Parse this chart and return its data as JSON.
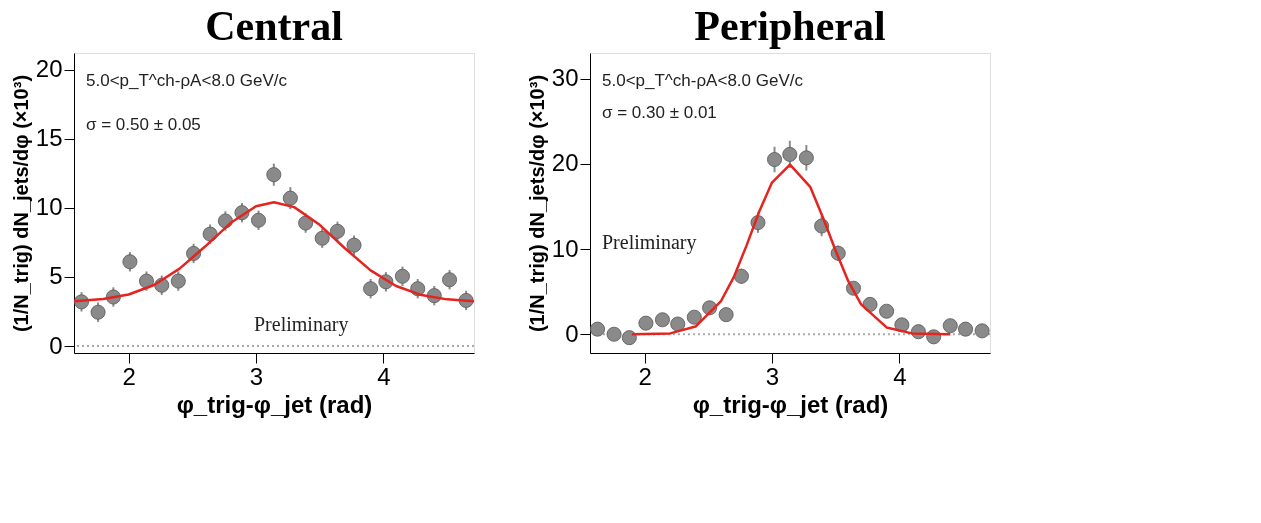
{
  "chart_data": [
    {
      "type": "scatter",
      "title": "Central",
      "xlabel": "φ_trig-φ_jet (rad)",
      "ylabel": "(1/N_trig) dN_jets/dφ (×10³)",
      "annotations": [
        "5.0<p_T^ch-ρA<8.0 GeV/c",
        "σ = 0.50 ± 0.05",
        "Preliminary"
      ],
      "xlim": [
        1.571,
        4.712
      ],
      "xticks": [
        2,
        3,
        4
      ],
      "ylim": [
        -0.5,
        21.2
      ],
      "yticks": [
        0,
        5,
        10,
        15,
        20
      ],
      "grid": false,
      "legend": false,
      "ref_lines": [
        {
          "axis": "y",
          "value": 0,
          "color": "#aaaaaa",
          "line_style": "dotted"
        }
      ],
      "series": [
        {
          "marker": "circle",
          "color": "#8a8a8a",
          "x": [
            1.63,
            1.76,
            1.88,
            2.01,
            2.14,
            2.26,
            2.39,
            2.51,
            2.64,
            2.76,
            2.89,
            3.02,
            3.14,
            3.27,
            3.39,
            3.52,
            3.64,
            3.77,
            3.9,
            4.02,
            4.15,
            4.27,
            4.4,
            4.52,
            4.65
          ],
          "values": [
            3.2,
            2.45,
            3.55,
            6.1,
            4.7,
            4.4,
            4.7,
            6.7,
            8.1,
            9.05,
            9.65,
            9.1,
            12.4,
            10.7,
            8.9,
            7.8,
            8.3,
            7.3,
            4.15,
            4.65,
            5.05,
            4.15,
            3.65,
            4.8,
            3.3
          ],
          "errors": [
            0.7,
            0.7,
            0.7,
            0.7,
            0.7,
            0.7,
            0.7,
            0.7,
            0.7,
            0.7,
            0.7,
            0.7,
            0.8,
            0.8,
            0.7,
            0.7,
            0.7,
            0.7,
            0.7,
            0.7,
            0.7,
            0.7,
            0.7,
            0.7,
            0.7
          ]
        },
        {
          "type": "line",
          "marker": "none",
          "color": "#e3241f",
          "line_style": "solid",
          "x": [
            1.571,
            1.8,
            2.0,
            2.2,
            2.4,
            2.6,
            2.8,
            3.0,
            3.1416,
            3.3,
            3.5,
            3.7,
            3.9,
            4.1,
            4.3,
            4.5,
            4.712
          ],
          "values": [
            3.25,
            3.4,
            3.73,
            4.42,
            5.6,
            7.2,
            8.9,
            10.12,
            10.4,
            10.05,
            8.77,
            7.06,
            5.48,
            4.35,
            3.69,
            3.38,
            3.25
          ]
        }
      ]
    },
    {
      "type": "scatter",
      "title": "Peripheral",
      "xlabel": "φ_trig-φ_jet (rad)",
      "ylabel": "(1/N_trig) dN_jets/dφ (×10³)",
      "annotations": [
        "5.0<p_T^ch-ρA<8.0 GeV/c",
        "σ = 0.30 ± 0.01",
        "Preliminary"
      ],
      "xlim": [
        1.571,
        4.712
      ],
      "xticks": [
        2,
        3,
        4
      ],
      "ylim": [
        -2.2,
        33
      ],
      "yticks": [
        0,
        10,
        20,
        30
      ],
      "grid": false,
      "legend": false,
      "ref_lines": [
        {
          "axis": "y",
          "value": 0,
          "color": "#aaaaaa",
          "line_style": "dotted"
        }
      ],
      "series": [
        {
          "marker": "circle",
          "color": "#8a8a8a",
          "x": [
            1.63,
            1.76,
            1.88,
            2.01,
            2.14,
            2.26,
            2.39,
            2.51,
            2.64,
            2.76,
            2.89,
            3.02,
            3.14,
            3.27,
            3.39,
            3.52,
            3.64,
            3.77,
            3.9,
            4.02,
            4.15,
            4.27,
            4.4,
            4.52,
            4.65
          ],
          "values": [
            0.6,
            0.0,
            -0.4,
            1.3,
            1.7,
            1.2,
            2.0,
            3.1,
            2.3,
            6.8,
            13.1,
            20.5,
            21.1,
            20.7,
            12.7,
            9.5,
            5.4,
            3.5,
            2.7,
            1.1,
            0.3,
            -0.3,
            1.0,
            0.6,
            0.4
          ],
          "errors": [
            0.6,
            0.6,
            0.6,
            0.6,
            0.6,
            0.6,
            0.6,
            0.6,
            0.6,
            0.9,
            1.2,
            1.5,
            1.6,
            1.5,
            1.2,
            0.9,
            0.7,
            0.6,
            0.6,
            0.6,
            0.6,
            0.6,
            0.6,
            0.6,
            0.6
          ]
        },
        {
          "type": "line",
          "marker": "none",
          "color": "#e3241f",
          "line_style": "solid",
          "x": [
            1.9,
            2.2,
            2.4,
            2.6,
            2.7,
            2.8,
            2.9,
            3.0,
            3.1416,
            3.3,
            3.4,
            3.5,
            3.6,
            3.7,
            3.9,
            4.1,
            4.4
          ],
          "values": [
            0.0,
            0.1,
            0.9,
            3.9,
            6.7,
            10.4,
            14.4,
            17.8,
            19.9,
            17.3,
            13.7,
            9.8,
            6.2,
            3.5,
            0.8,
            0.1,
            0.0
          ]
        }
      ]
    }
  ]
}
